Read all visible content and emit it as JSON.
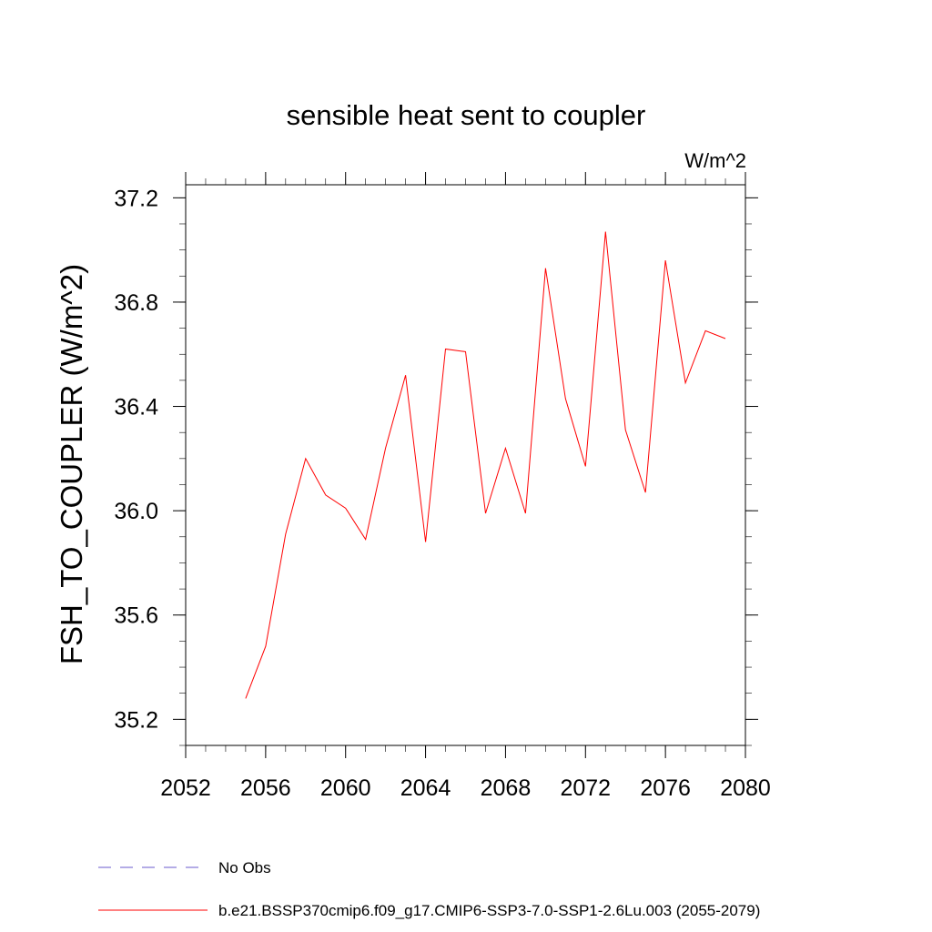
{
  "chart_data": {
    "type": "line",
    "title": "sensible heat sent to coupler",
    "units": "W/m^2",
    "xlabel": "",
    "ylabel": "FSH_TO_COUPLER  (W/m^2)",
    "xlim": [
      2052,
      2080
    ],
    "ylim": [
      35.1,
      37.25
    ],
    "x_ticks": [
      "2052",
      "2056",
      "2060",
      "2064",
      "2068",
      "2072",
      "2076",
      "2080"
    ],
    "y_ticks": [
      "35.2",
      "35.6",
      "36.0",
      "36.4",
      "36.8",
      "37.2"
    ],
    "grid": false,
    "legend_position": "bottom-left",
    "legend": [
      {
        "label": "No Obs",
        "color": "#6a5acd",
        "style": "dashed"
      },
      {
        "label": "b.e21.BSSP370cmip6.f09_g17.CMIP6-SSP3-7.0-SSP1-2.6Lu.003 (2055-2079)",
        "color": "#ff0000",
        "style": "solid"
      }
    ],
    "series": [
      {
        "name": "b.e21.BSSP370cmip6.f09_g17.CMIP6-SSP3-7.0-SSP1-2.6Lu.003 (2055-2079)",
        "color": "#ff0000",
        "x": [
          2055,
          2056,
          2057,
          2058,
          2059,
          2060,
          2061,
          2062,
          2063,
          2064,
          2065,
          2066,
          2067,
          2068,
          2069,
          2070,
          2071,
          2072,
          2073,
          2074,
          2075,
          2076,
          2077,
          2078,
          2079
        ],
        "values": [
          35.28,
          35.48,
          35.91,
          36.2,
          36.06,
          36.01,
          35.89,
          36.24,
          36.52,
          35.88,
          36.62,
          36.61,
          35.99,
          36.24,
          35.99,
          36.93,
          36.43,
          36.17,
          37.07,
          36.31,
          36.07,
          36.96,
          36.49,
          36.69,
          36.66
        ]
      }
    ]
  }
}
